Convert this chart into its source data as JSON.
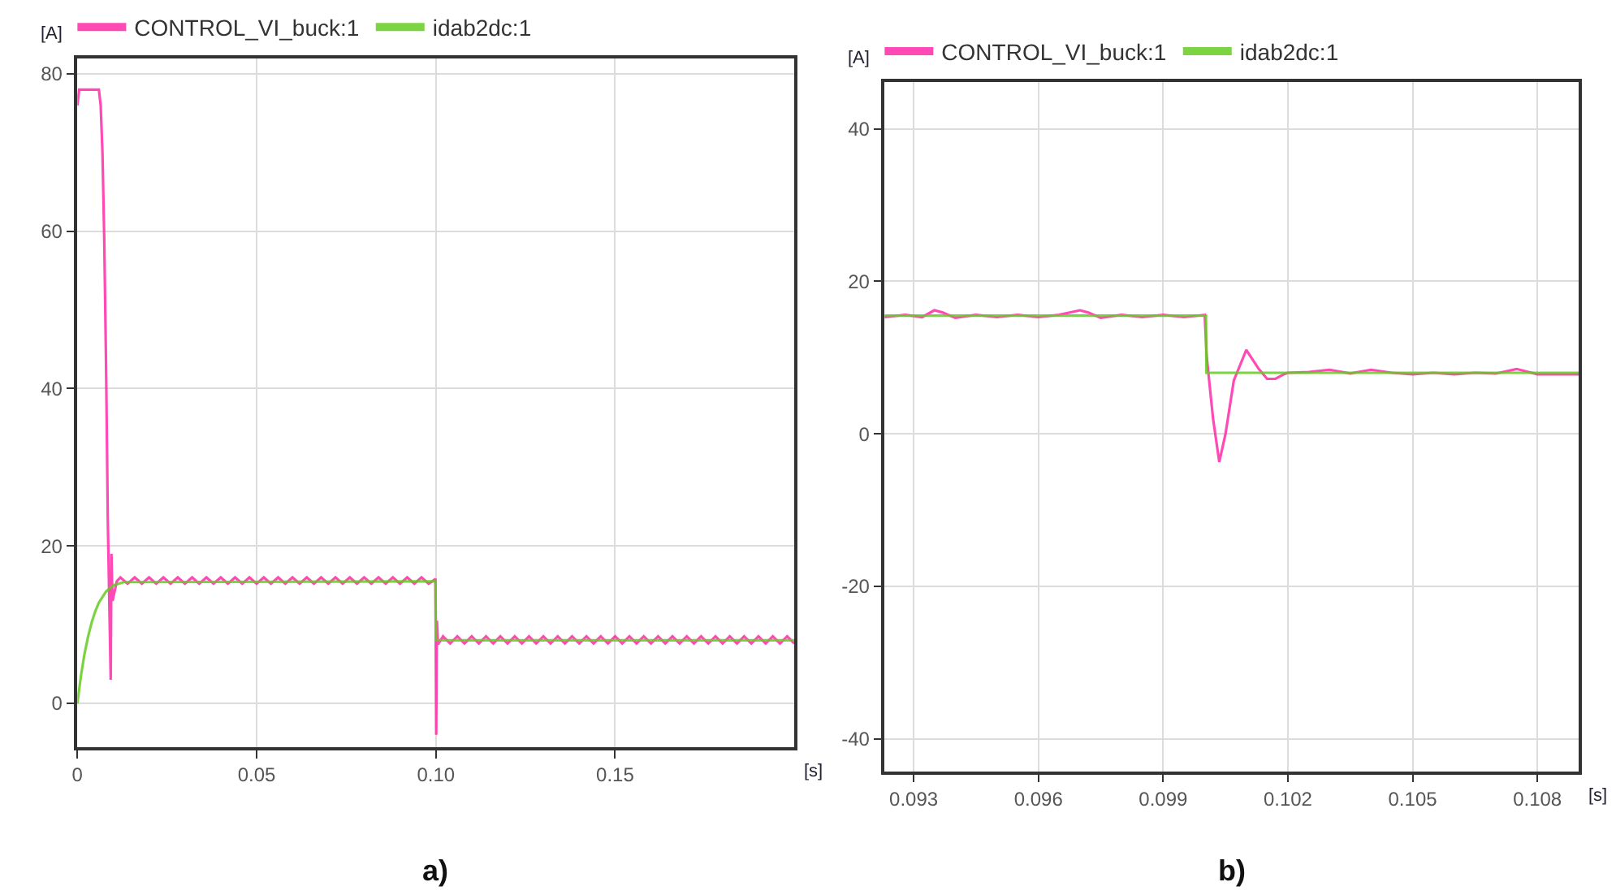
{
  "chart_data": [
    {
      "type": "line",
      "xlabel": "[s]",
      "ylabel": "[A]",
      "annotations": [
        "a)"
      ],
      "xlim": [
        0,
        0.2
      ],
      "ylim": [
        -5.6,
        82
      ],
      "xticks": [
        0,
        0.05,
        {
          "value": 0.1,
          "label": "0.10"
        },
        0.15
      ],
      "yticks": [
        0,
        20,
        40,
        60,
        80
      ],
      "grid": true,
      "legend": "top left",
      "marker": "none",
      "line_style": "solid",
      "series": [
        {
          "name": "CONTROL_VI_buck:1",
          "color": "#ff2aa8",
          "x": [
            0,
            0.0005,
            0.006,
            0.0065,
            0.007,
            0.0075,
            0.008,
            0.0085,
            0.0093,
            0.0095,
            0.0098,
            0.011,
            0.012,
            0.014,
            0.016,
            0.018,
            0.02,
            0.022,
            0.024,
            0.026,
            0.028,
            0.03,
            0.032,
            0.034,
            0.036,
            0.038,
            0.04,
            0.042,
            0.044,
            0.046,
            0.048,
            0.05,
            0.052,
            0.054,
            0.056,
            0.058,
            0.06,
            0.062,
            0.064,
            0.066,
            0.068,
            0.07,
            0.072,
            0.074,
            0.076,
            0.078,
            0.08,
            0.082,
            0.084,
            0.086,
            0.088,
            0.09,
            0.092,
            0.094,
            0.096,
            0.098,
            0.0999,
            0.1001,
            0.1003,
            0.1006,
            0.102,
            0.104,
            0.106,
            0.108,
            0.11,
            0.112,
            0.114,
            0.116,
            0.118,
            0.12,
            0.122,
            0.124,
            0.126,
            0.128,
            0.13,
            0.132,
            0.134,
            0.136,
            0.138,
            0.14,
            0.142,
            0.144,
            0.146,
            0.148,
            0.15,
            0.152,
            0.154,
            0.156,
            0.158,
            0.16,
            0.162,
            0.164,
            0.166,
            0.168,
            0.17,
            0.172,
            0.174,
            0.176,
            0.178,
            0.18,
            0.182,
            0.184,
            0.186,
            0.188,
            0.19,
            0.192,
            0.194,
            0.196,
            0.198,
            0.2
          ],
          "values": [
            76,
            78,
            78,
            76,
            70,
            59,
            43,
            23,
            3,
            19,
            13,
            15.5,
            16,
            15.2,
            16,
            15.2,
            16,
            15.2,
            16,
            15.2,
            16,
            15.2,
            16,
            15.2,
            16,
            15.2,
            16,
            15.2,
            16,
            15.2,
            16,
            15.2,
            16,
            15.2,
            16,
            15.2,
            16,
            15.2,
            16,
            15.2,
            16,
            15.2,
            16,
            15.2,
            16,
            15.2,
            16,
            15.2,
            16,
            15.2,
            16,
            15.2,
            16,
            15.2,
            16,
            15.2,
            15.8,
            -4,
            10.5,
            7.5,
            8.5,
            7.6,
            8.5,
            7.6,
            8.5,
            7.6,
            8.5,
            7.6,
            8.5,
            7.6,
            8.5,
            7.6,
            8.5,
            7.6,
            8.5,
            7.6,
            8.5,
            7.6,
            8.5,
            7.6,
            8.5,
            7.6,
            8.5,
            7.6,
            8.5,
            7.6,
            8.5,
            7.6,
            8.5,
            7.6,
            8.5,
            7.6,
            8.5,
            7.6,
            8.5,
            7.6,
            8.5,
            7.6,
            8.5,
            7.6,
            8.5,
            7.6,
            8.5,
            7.6,
            8.5,
            7.6,
            8.5,
            7.6,
            8.5,
            7.6
          ]
        },
        {
          "name": "idab2dc:1",
          "color": "#66cc22",
          "x": [
            0,
            0.001,
            0.002,
            0.003,
            0.004,
            0.005,
            0.006,
            0.008,
            0.01,
            0.013,
            0.0999,
            0.1,
            0.2
          ],
          "values": [
            0,
            3.5,
            6.3,
            8.5,
            10.3,
            11.7,
            12.8,
            14.2,
            15,
            15.4,
            15.5,
            8,
            8
          ]
        }
      ]
    },
    {
      "type": "line",
      "xlabel": "[s]",
      "ylabel": "[A]",
      "annotations": [
        "b)"
      ],
      "xlim": [
        0.0923,
        0.109
      ],
      "ylim": [
        -44.3,
        46.1
      ],
      "xticks": [
        0.093,
        0.096,
        0.099,
        0.102,
        0.105,
        0.108
      ],
      "yticks": [
        -40,
        -20,
        0,
        20,
        40
      ],
      "grid": true,
      "legend": "top left",
      "marker": "none",
      "line_style": "solid",
      "series": [
        {
          "name": "CONTROL_VI_buck:1",
          "color": "#ff2aa8",
          "x": [
            0.0923,
            0.0928,
            0.0932,
            0.0935,
            0.0937,
            0.094,
            0.0945,
            0.095,
            0.0955,
            0.096,
            0.0965,
            0.097,
            0.0972,
            0.0975,
            0.098,
            0.0985,
            0.099,
            0.0995,
            0.1,
            0.10005,
            0.1002,
            0.10035,
            0.1005,
            0.1007,
            0.101,
            0.1013,
            0.1015,
            0.1017,
            0.1019,
            0.102,
            0.1025,
            0.103,
            0.1035,
            0.104,
            0.1045,
            0.105,
            0.1055,
            0.106,
            0.1065,
            0.107,
            0.1075,
            0.108,
            0.109
          ],
          "values": [
            15.3,
            15.6,
            15.3,
            16.2,
            15.9,
            15.2,
            15.6,
            15.3,
            15.6,
            15.3,
            15.6,
            16.2,
            15.9,
            15.2,
            15.6,
            15.3,
            15.6,
            15.3,
            15.6,
            10,
            2,
            -3.7,
            0,
            7,
            11,
            8.5,
            7.2,
            7.2,
            7.8,
            8,
            8.1,
            8.4,
            7.9,
            8.4,
            8,
            7.8,
            8,
            7.8,
            8,
            7.9,
            8.5,
            7.8,
            7.8
          ]
        },
        {
          "name": "idab2dc:1",
          "color": "#66cc22",
          "x": [
            0.0923,
            0.10003,
            0.10004,
            0.109
          ],
          "values": [
            15.5,
            15.5,
            8,
            8
          ]
        }
      ]
    }
  ]
}
